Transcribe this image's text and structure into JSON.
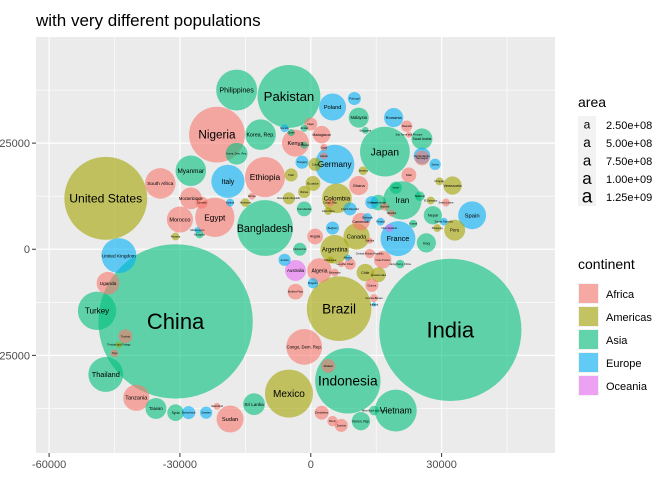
{
  "chart_data": {
    "type": "scatter",
    "subtype": "packed-bubble",
    "title": "with very different populations",
    "xlabel": "",
    "ylabel": "",
    "xlim": [
      -63000,
      56000
    ],
    "ylim": [
      -48000,
      50000
    ],
    "x_ticks": [
      -60000,
      -30000,
      0,
      30000
    ],
    "x_tick_labels": [
      "-60000",
      "-30000",
      "0",
      "30000"
    ],
    "y_ticks": [
      -25000,
      0,
      25000
    ],
    "y_tick_labels": [
      "-25000",
      "0",
      "25000"
    ],
    "grid": true,
    "legend_area": {
      "title": "area",
      "glyph": "a",
      "entries": [
        "2.50e+08",
        "5.00e+08",
        "7.50e+08",
        "1.00e+09",
        "1.25e+09"
      ]
    },
    "legend_continent": {
      "title": "continent",
      "entries": [
        {
          "name": "Africa",
          "color": "#F8766D"
        },
        {
          "name": "Americas",
          "color": "#A3A500"
        },
        {
          "name": "Asia",
          "color": "#00BF7D"
        },
        {
          "name": "Europe",
          "color": "#00B0F6"
        },
        {
          "name": "Oceania",
          "color": "#E76BF3"
        }
      ]
    },
    "points": [
      {
        "label": "China",
        "continent": "Asia",
        "x": -31000,
        "y": -17000,
        "r": 17700
      },
      {
        "label": "India",
        "continent": "Asia",
        "x": 32000,
        "y": -19000,
        "r": 16300
      },
      {
        "label": "United States",
        "continent": "Americas",
        "x": -47000,
        "y": 12000,
        "r": 9500
      },
      {
        "label": "Indonesia",
        "continent": "Asia",
        "x": 8500,
        "y": -31000,
        "r": 7500
      },
      {
        "label": "Brazil",
        "continent": "Americas",
        "x": 6500,
        "y": -14000,
        "r": 7400
      },
      {
        "label": "Pakistan",
        "continent": "Asia",
        "x": -5000,
        "y": 36000,
        "r": 7200
      },
      {
        "label": "Bangladesh",
        "continent": "Asia",
        "x": -10500,
        "y": 5000,
        "r": 6400
      },
      {
        "label": "Nigeria",
        "continent": "Africa",
        "x": -21500,
        "y": 27000,
        "r": 6400
      },
      {
        "label": "Japan",
        "continent": "Asia",
        "x": 17000,
        "y": 23000,
        "r": 5700
      },
      {
        "label": "Mexico",
        "continent": "Americas",
        "x": -5000,
        "y": -34000,
        "r": 5500
      },
      {
        "label": "Philippines",
        "continent": "Asia",
        "x": -17000,
        "y": 37500,
        "r": 4700
      },
      {
        "label": "Vietnam",
        "continent": "Asia",
        "x": 19500,
        "y": -38000,
        "r": 4800
      },
      {
        "label": "Ethiopia",
        "continent": "Africa",
        "x": -10500,
        "y": 17000,
        "r": 4600
      },
      {
        "label": "Egypt",
        "continent": "Africa",
        "x": -22000,
        "y": 7500,
        "r": 4500
      },
      {
        "label": "Germany",
        "continent": "Europe",
        "x": 5500,
        "y": 20000,
        "r": 4500
      },
      {
        "label": "Iran",
        "continent": "Asia",
        "x": 21000,
        "y": 11500,
        "r": 4400
      },
      {
        "label": "Congo, Dem. Rep.",
        "continent": "Africa",
        "x": -1500,
        "y": -23000,
        "r": 4100
      },
      {
        "label": "France",
        "continent": "Europe",
        "x": 20000,
        "y": 2500,
        "r": 4000
      },
      {
        "label": "United Kingdom",
        "continent": "Europe",
        "x": -44000,
        "y": -1500,
        "r": 4000
      },
      {
        "label": "Italy",
        "continent": "Europe",
        "x": -19000,
        "y": 16000,
        "r": 3800
      },
      {
        "label": "Korea, Rep.",
        "continent": "Asia",
        "x": -11500,
        "y": 27000,
        "r": 3500
      },
      {
        "label": "Turkey",
        "continent": "Asia",
        "x": -49000,
        "y": -14500,
        "r": 4400
      },
      {
        "label": "Thailand",
        "continent": "Asia",
        "x": -47000,
        "y": -29500,
        "r": 4000
      },
      {
        "label": "Myanmar",
        "continent": "Asia",
        "x": -27500,
        "y": 18500,
        "r": 3500
      },
      {
        "label": "South Africa",
        "continent": "Africa",
        "x": -34500,
        "y": 15500,
        "r": 3500
      },
      {
        "label": "Colombia",
        "continent": "Americas",
        "x": 6000,
        "y": 12000,
        "r": 3400
      },
      {
        "label": "Spain",
        "continent": "Europe",
        "x": 37000,
        "y": 8000,
        "r": 3200
      },
      {
        "label": "Argentina",
        "continent": "Americas",
        "x": 5500,
        "y": 0,
        "r": 3300
      },
      {
        "label": "Poland",
        "continent": "Europe",
        "x": 5000,
        "y": 33500,
        "r": 3100
      },
      {
        "label": "Kenya",
        "continent": "Africa",
        "x": -3500,
        "y": 25000,
        "r": 3100
      },
      {
        "label": "Sudan",
        "continent": "Africa",
        "x": -18500,
        "y": -40000,
        "r": 3100
      },
      {
        "label": "Morocco",
        "continent": "Africa",
        "x": -30000,
        "y": 7000,
        "r": 3000
      },
      {
        "label": "Canada",
        "continent": "Americas",
        "x": 10500,
        "y": 3000,
        "r": 3000
      },
      {
        "label": "Korea, Dem. Rep.",
        "continent": "Asia",
        "x": -17000,
        "y": 22500,
        "r": 2500
      },
      {
        "label": "Tanzania",
        "continent": "Africa",
        "x": -40000,
        "y": -35000,
        "r": 3000
      },
      {
        "label": "Uganda",
        "continent": "Africa",
        "x": -46500,
        "y": -8000,
        "r": 2600
      },
      {
        "label": "Mozambique",
        "continent": "Africa",
        "x": -27500,
        "y": 12000,
        "r": 2500
      },
      {
        "label": "Algeria",
        "continent": "Africa",
        "x": 2000,
        "y": -5000,
        "r": 2800
      },
      {
        "label": "Iraq",
        "continent": "Asia",
        "x": 26500,
        "y": 1500,
        "r": 2200
      },
      {
        "label": "Peru",
        "continent": "Americas",
        "x": 33000,
        "y": 4500,
        "r": 2400
      },
      {
        "label": "Saudi Arabia",
        "continent": "Asia",
        "x": 25500,
        "y": 26000,
        "r": 2400
      },
      {
        "label": "Malaysia",
        "continent": "Asia",
        "x": 11000,
        "y": 31000,
        "r": 2300
      },
      {
        "label": "Romania",
        "continent": "Europe",
        "x": 19000,
        "y": 31000,
        "r": 2200
      },
      {
        "label": "Nepal",
        "continent": "Asia",
        "x": 28000,
        "y": 8000,
        "r": 2100
      },
      {
        "label": "Venezuela",
        "continent": "Americas",
        "x": 32500,
        "y": 15000,
        "r": 2100
      },
      {
        "label": "Ghana",
        "continent": "Africa",
        "x": 11000,
        "y": 15000,
        "r": 2200
      },
      {
        "label": "Australia",
        "continent": "Oceania",
        "x": -3500,
        "y": -5000,
        "r": 2400
      },
      {
        "label": "Sri Lanka",
        "continent": "Asia",
        "x": -13000,
        "y": -36500,
        "r": 2500
      },
      {
        "label": "Taiwan",
        "continent": "Asia",
        "x": -35500,
        "y": -37500,
        "r": 2400
      },
      {
        "label": "Yemen, Rep.",
        "continent": "Asia",
        "x": 11500,
        "y": -40500,
        "r": 2100
      },
      {
        "label": "Zimbabwe",
        "continent": "Africa",
        "x": 2500,
        "y": -38500,
        "r": 1600
      },
      {
        "label": "Syria",
        "continent": "Asia",
        "x": -31000,
        "y": -38500,
        "r": 1900
      },
      {
        "label": "Cote d'Ivoire",
        "continent": "Africa",
        "x": 16500,
        "y": -2500,
        "r": 2000
      },
      {
        "label": "Cameroon",
        "continent": "Africa",
        "x": 11500,
        "y": 6500,
        "r": 2000
      },
      {
        "label": "Madagascar",
        "continent": "Africa",
        "x": 2500,
        "y": 27000,
        "r": 2000
      },
      {
        "label": "Chile",
        "continent": "Americas",
        "x": 12500,
        "y": -5500,
        "r": 2000
      },
      {
        "label": "Guatemala",
        "continent": "Americas",
        "x": 15500,
        "y": -6000,
        "r": 1700
      },
      {
        "label": "Netherlands",
        "continent": "Europe",
        "x": 25500,
        "y": 22000,
        "r": 1900
      },
      {
        "label": "Ecuador",
        "continent": "Americas",
        "x": 500,
        "y": 15500,
        "r": 1700
      },
      {
        "label": "Cambodia",
        "continent": "Asia",
        "x": -1500,
        "y": 9500,
        "r": 1700
      },
      {
        "label": "Burkina Faso",
        "continent": "Africa",
        "x": -3500,
        "y": -10000,
        "r": 1800
      },
      {
        "label": "Mali",
        "continent": "Africa",
        "x": 22500,
        "y": 17500,
        "r": 1700
      },
      {
        "label": "Angola",
        "continent": "Africa",
        "x": 1000,
        "y": 3000,
        "r": 1800
      },
      {
        "label": "Kazakhstan",
        "continent": "Asia",
        "x": 15500,
        "y": 11000,
        "r": 1800
      },
      {
        "label": "Greece",
        "continent": "Europe",
        "x": 14000,
        "y": 11000,
        "r": 1500
      },
      {
        "label": "Portugal",
        "continent": "Europe",
        "x": 10000,
        "y": 35500,
        "r": 1500
      },
      {
        "label": "Belgium",
        "continent": "Europe",
        "x": 5000,
        "y": 5000,
        "r": 1500
      },
      {
        "label": "Hungary",
        "continent": "Europe",
        "x": -2000,
        "y": 20500,
        "r": 1500
      },
      {
        "label": "Cuba",
        "continent": "Americas",
        "x": 1000,
        "y": 20000,
        "r": 1500
      },
      {
        "label": "Czech Republic",
        "continent": "Europe",
        "x": 9000,
        "y": 9500,
        "r": 1500
      },
      {
        "label": "Senegal",
        "continent": "Africa",
        "x": 25500,
        "y": 21500,
        "r": 1700
      },
      {
        "label": "Tunisia",
        "continent": "Africa",
        "x": -42500,
        "y": -20500,
        "r": 1600
      },
      {
        "label": "Zambia",
        "continent": "Africa",
        "x": 7000,
        "y": -41500,
        "r": 1500
      },
      {
        "label": "Guinea",
        "continent": "Africa",
        "x": 14000,
        "y": -8500,
        "r": 1500
      },
      {
        "label": "Israel",
        "continent": "Asia",
        "x": 19500,
        "y": 14500,
        "r": 1400
      },
      {
        "label": "Austria",
        "continent": "Europe",
        "x": -6000,
        "y": -2500,
        "r": 1400
      },
      {
        "label": "Switzerland",
        "continent": "Europe",
        "x": -28000,
        "y": -38500,
        "r": 1500
      },
      {
        "label": "Sweden",
        "continent": "Europe",
        "x": -24000,
        "y": -38500,
        "r": 1400
      },
      {
        "label": "Haiti",
        "continent": "Americas",
        "x": -4500,
        "y": 17500,
        "r": 1500
      },
      {
        "label": "Bolivia",
        "continent": "Americas",
        "x": -1500,
        "y": 13500,
        "r": 1400
      },
      {
        "label": "Dominican Republic",
        "continent": "Americas",
        "x": -5000,
        "y": 12000,
        "r": 1400
      },
      {
        "label": "Malawi",
        "continent": "Africa",
        "x": 4000,
        "y": -27500,
        "r": 1600
      },
      {
        "label": "Niger",
        "continent": "Africa",
        "x": 0,
        "y": 29500,
        "r": 1500
      },
      {
        "label": "Somalia",
        "continent": "Africa",
        "x": -25000,
        "y": 11000,
        "r": 1400
      },
      {
        "label": "Rwanda",
        "continent": "Africa",
        "x": 22000,
        "y": 29000,
        "r": 1300
      },
      {
        "label": "Chad",
        "continent": "Africa",
        "x": 9000,
        "y": -3500,
        "r": 1300
      },
      {
        "label": "Serbia",
        "continent": "Europe",
        "x": 28500,
        "y": 20000,
        "r": 1300
      },
      {
        "label": "Benin",
        "continent": "Africa",
        "x": 5000,
        "y": -40500,
        "r": 1200
      },
      {
        "label": "Tajikistan",
        "continent": "Asia",
        "x": 25000,
        "y": 12500,
        "r": 1100
      },
      {
        "label": "Bulgaria",
        "continent": "Europe",
        "x": 500,
        "y": -8000,
        "r": 1200
      },
      {
        "label": "Botswana",
        "continent": "Africa",
        "x": 5500,
        "y": -5500,
        "r": 900
      },
      {
        "label": "Mongolia",
        "continent": "Asia",
        "x": -25500,
        "y": 3500,
        "r": 900
      },
      {
        "label": "Afghanistan",
        "continent": "Asia",
        "x": -2500,
        "y": 0,
        "r": 1500
      },
      {
        "label": "Denmark",
        "continent": "Europe",
        "x": 13000,
        "y": 7500,
        "r": 1000
      },
      {
        "label": "Finland",
        "continent": "Europe",
        "x": 16000,
        "y": 6500,
        "r": 900
      },
      {
        "label": "Hong Kong, China",
        "continent": "Asia",
        "x": 20500,
        "y": -3500,
        "r": 1000
      },
      {
        "label": "Jamaica",
        "continent": "Americas",
        "x": 12000,
        "y": 18500,
        "r": 1000
      },
      {
        "label": "Honduras",
        "continent": "Americas",
        "x": -15000,
        "y": 11000,
        "r": 1000
      },
      {
        "label": "Ireland",
        "continent": "Europe",
        "x": -18500,
        "y": 11000,
        "r": 900
      },
      {
        "label": "Lebanon",
        "continent": "Asia",
        "x": -1500,
        "y": 24500,
        "r": 800
      },
      {
        "label": "Liberia",
        "continent": "Africa",
        "x": 3000,
        "y": 22000,
        "r": 800
      },
      {
        "label": "Libya",
        "continent": "Africa",
        "x": 3000,
        "y": 24000,
        "r": 800
      },
      {
        "label": "Norway",
        "continent": "Europe",
        "x": -6000,
        "y": 28500,
        "r": 900
      },
      {
        "label": "Oman",
        "continent": "Asia",
        "x": -4500,
        "y": 27500,
        "r": 800
      },
      {
        "label": "Jordan",
        "continent": "Asia",
        "x": -1500,
        "y": 28500,
        "r": 800
      },
      {
        "label": "Costa Rica",
        "continent": "Americas",
        "x": 4000,
        "y": 9000,
        "r": 900
      },
      {
        "label": "Congo, Rep.",
        "continent": "Africa",
        "x": 4500,
        "y": 11000,
        "r": 900
      },
      {
        "label": "El Salvador",
        "continent": "Americas",
        "x": 27500,
        "y": 11500,
        "r": 900
      },
      {
        "label": "Sierra Leone",
        "continent": "Africa",
        "x": 31000,
        "y": 11000,
        "r": 900
      },
      {
        "label": "Central African Republic",
        "continent": "Africa",
        "x": 13500,
        "y": -1000,
        "r": 1100
      },
      {
        "label": "Burundi",
        "continent": "Africa",
        "x": 17000,
        "y": 10000,
        "r": 900
      },
      {
        "label": "Eritrea",
        "continent": "Africa",
        "x": -13500,
        "y": 12500,
        "r": 800
      },
      {
        "label": "Singapore",
        "continent": "Asia",
        "x": 12500,
        "y": 28000,
        "r": 800
      },
      {
        "label": "Uruguay",
        "continent": "Americas",
        "x": 29500,
        "y": 16000,
        "r": 900
      },
      {
        "label": "Panama",
        "continent": "Americas",
        "x": -31000,
        "y": 3000,
        "r": 900
      },
      {
        "label": "Paraguay",
        "continent": "Americas",
        "x": 29000,
        "y": 5000,
        "r": 900
      },
      {
        "label": "Kuwait",
        "continent": "Asia",
        "x": 23500,
        "y": 6000,
        "r": 900
      },
      {
        "label": "New Zealand",
        "continent": "Oceania",
        "x": 18000,
        "y": 5000,
        "r": 900
      },
      {
        "label": "Slovak Republic",
        "continent": "Europe",
        "x": 30500,
        "y": 6500,
        "r": 900
      },
      {
        "label": "Guinea-Bissau",
        "continent": "Africa",
        "x": 14500,
        "y": -11500,
        "r": 900
      },
      {
        "label": "Iceland",
        "continent": "Europe",
        "x": 14500,
        "y": -13000,
        "r": 500
      },
      {
        "label": "Togo",
        "continent": "Africa",
        "x": -45000,
        "y": -24500,
        "r": 900
      },
      {
        "label": "Trinidad and Tobago",
        "continent": "Americas",
        "x": -44000,
        "y": -22500,
        "r": 700
      },
      {
        "label": "Montenegro",
        "continent": "Europe",
        "x": -26000,
        "y": 4500,
        "r": 700
      },
      {
        "label": "Swaziland",
        "continent": "Africa",
        "x": -21500,
        "y": -37000,
        "r": 800
      },
      {
        "label": "West Bank and Gaza",
        "continent": "Asia",
        "x": 14500,
        "y": -38000,
        "r": 1100
      },
      {
        "label": "Sao Tome and Principe",
        "continent": "Africa",
        "x": 22500,
        "y": 27000,
        "r": 700
      },
      {
        "label": "Albania",
        "continent": "Europe",
        "x": 8500,
        "y": -2000,
        "r": 700
      },
      {
        "label": "Gambia",
        "continent": "Africa",
        "x": 13500,
        "y": 2000,
        "r": 700
      },
      {
        "label": "Lesotho",
        "continent": "Africa",
        "x": 7000,
        "y": -3500,
        "r": 700
      },
      {
        "label": "Nicaragua",
        "continent": "Americas",
        "x": 4500,
        "y": -2500,
        "r": 800
      },
      {
        "label": "Namibia",
        "continent": "Africa",
        "x": 18500,
        "y": 8500,
        "r": 800
      }
    ]
  }
}
